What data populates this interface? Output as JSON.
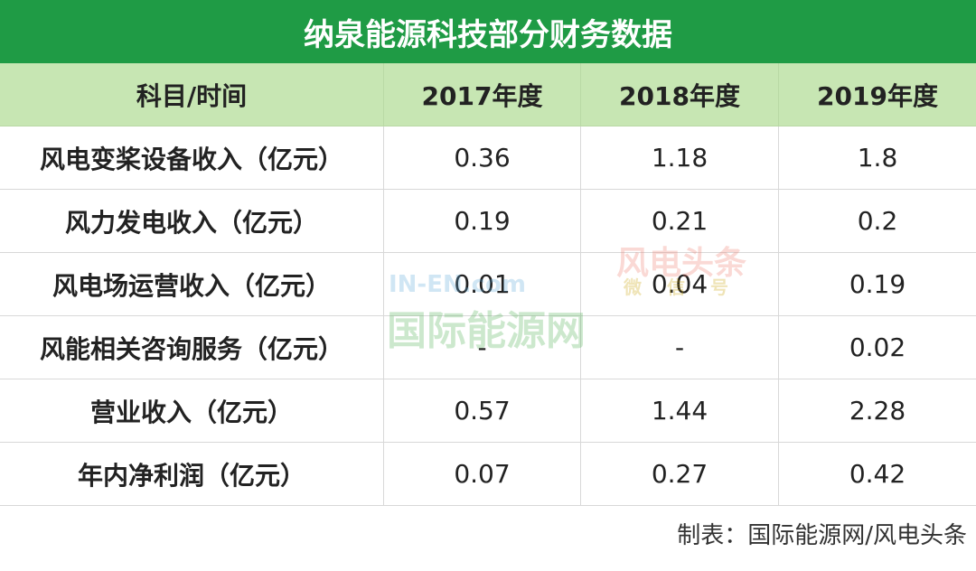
{
  "title": "纳泉能源科技部分财务数据",
  "table": {
    "header": [
      "科目/时间",
      "2017年度",
      "2018年度",
      "2019年度"
    ],
    "rows": [
      [
        "风电变桨设备收入（亿元）",
        "0.36",
        "1.18",
        "1.8"
      ],
      [
        "风力发电收入（亿元）",
        "0.19",
        "0.21",
        "0.2"
      ],
      [
        "风电场运营收入（亿元）",
        "0.01",
        "0.04",
        "0.19"
      ],
      [
        "风能相关咨询服务（亿元）",
        "-",
        "-",
        "0.02"
      ],
      [
        "营业收入（亿元）",
        "0.57",
        "1.44",
        "2.28"
      ],
      [
        "年内净利润（亿元）",
        "0.07",
        "0.27",
        "0.42"
      ]
    ]
  },
  "footer": "制表：国际能源网/风电头条",
  "watermarks": [
    "IN-EN.com",
    "国际能源网",
    "风电头条",
    "微信号"
  ]
}
